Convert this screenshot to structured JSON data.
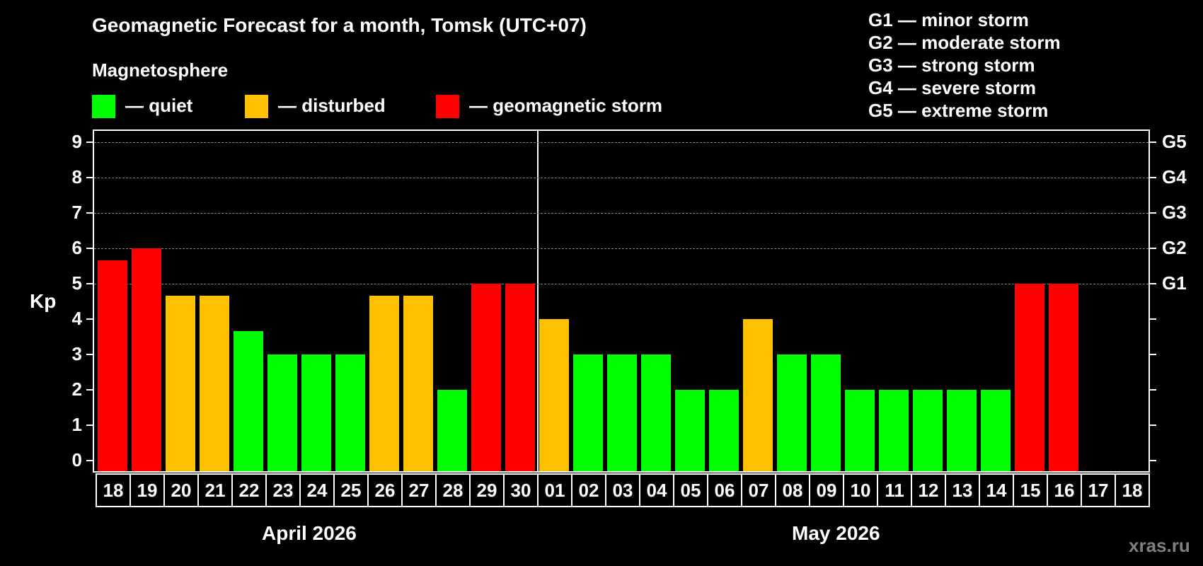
{
  "title": "Geomagnetic Forecast for a month, Tomsk (UTC+07)",
  "subtitle": "Magnetosphere",
  "legend": [
    {
      "label": "— quiet",
      "color": "#00ff00"
    },
    {
      "label": "— disturbed",
      "color": "#ffc000"
    },
    {
      "label": "— geomagnetic storm",
      "color": "#ff0000"
    }
  ],
  "g_legend": [
    "G1 — minor storm",
    "G2 — moderate storm",
    "G3 — strong storm",
    "G4 — severe storm",
    "G5 — extreme storm"
  ],
  "y_axis_label": "Kp",
  "watermark": "xras.ru",
  "chart_data": {
    "type": "bar",
    "title": "Geomagnetic Forecast for a month, Tomsk (UTC+07)",
    "xlabel": "",
    "ylabel": "Kp",
    "ylim": [
      0,
      9
    ],
    "yticks": [
      0,
      1,
      2,
      3,
      4,
      5,
      6,
      7,
      8,
      9
    ],
    "right_axis": {
      "5": "G1",
      "6": "G2",
      "7": "G3",
      "8": "G4",
      "9": "G5"
    },
    "grid": "dashed horizontal at Kp 5-9",
    "months": [
      {
        "label": "April 2026",
        "days": [
          "18",
          "19",
          "20",
          "21",
          "22",
          "23",
          "24",
          "25",
          "26",
          "27",
          "28",
          "29",
          "30"
        ]
      },
      {
        "label": "May 2026",
        "days": [
          "01",
          "02",
          "03",
          "04",
          "05",
          "06",
          "07",
          "08",
          "09",
          "10",
          "11",
          "12",
          "13",
          "14",
          "15",
          "16",
          "17",
          "18"
        ]
      }
    ],
    "categories": [
      "18",
      "19",
      "20",
      "21",
      "22",
      "23",
      "24",
      "25",
      "26",
      "27",
      "28",
      "29",
      "30",
      "01",
      "02",
      "03",
      "04",
      "05",
      "06",
      "07",
      "08",
      "09",
      "10",
      "11",
      "12",
      "13",
      "14",
      "15",
      "16",
      "17",
      "18"
    ],
    "values": [
      5.67,
      6,
      4.67,
      4.67,
      3.67,
      3,
      3,
      3,
      4.67,
      4.67,
      2,
      5,
      5,
      4,
      3,
      3,
      3,
      2,
      2,
      4,
      3,
      3,
      2,
      2,
      2,
      2,
      2,
      5,
      5,
      null,
      null
    ],
    "status": [
      "storm",
      "storm",
      "disturbed",
      "disturbed",
      "quiet",
      "quiet",
      "quiet",
      "quiet",
      "disturbed",
      "disturbed",
      "quiet",
      "storm",
      "storm",
      "disturbed",
      "quiet",
      "quiet",
      "quiet",
      "quiet",
      "quiet",
      "disturbed",
      "quiet",
      "quiet",
      "quiet",
      "quiet",
      "quiet",
      "quiet",
      "quiet",
      "storm",
      "storm",
      null,
      null
    ],
    "colors": {
      "quiet": "#00ff00",
      "disturbed": "#ffc000",
      "storm": "#ff0000"
    }
  }
}
